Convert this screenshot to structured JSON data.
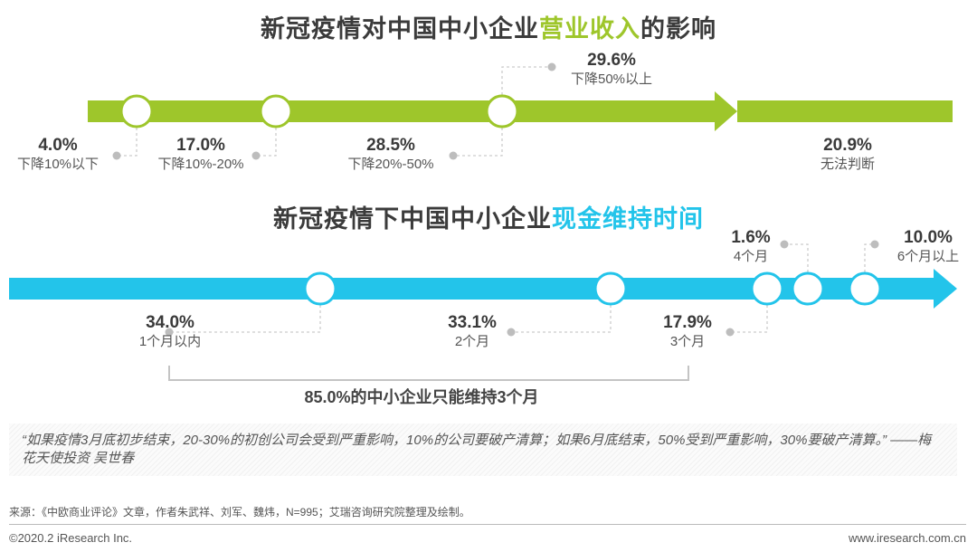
{
  "colors": {
    "green": "#9ec62b",
    "blue": "#23c4ea",
    "dashed": "#cccccc",
    "dot": "#bdbdbd"
  },
  "chart1": {
    "title_prefix": "新冠疫情对中国中小企业",
    "title_highlight": "营业收入",
    "title_suffix": "的影响"
  },
  "chart2": {
    "title_prefix": "新冠疫情下中国中小企业",
    "title_highlight": "现金维持时间",
    "summary": "85.0%的中小企业只能维持3个月"
  },
  "chart_data": [
    {
      "type": "timeline",
      "title": "新冠疫情对中国中小企业营业收入的影响",
      "unit": "%",
      "categories": [
        "下降10%以下",
        "下降10%-20%",
        "下降20%-50%",
        "下降50%以上",
        "无法判断"
      ],
      "values": [
        4.0,
        17.0,
        28.5,
        29.6,
        20.9
      ],
      "labels": [
        "4.0%",
        "17.0%",
        "28.5%",
        "29.6%",
        "20.9%"
      ]
    },
    {
      "type": "timeline",
      "title": "新冠疫情下中国中小企业现金维持时间",
      "unit": "%",
      "categories": [
        "1个月以内",
        "2个月",
        "3个月",
        "4个月",
        "6个月以上"
      ],
      "values": [
        34.0,
        33.1,
        17.9,
        1.6,
        10.0
      ],
      "labels": [
        "34.0%",
        "33.1%",
        "17.9%",
        "1.6%",
        "10.0%"
      ],
      "annotation": "85.0%的中小企业只能维持3个月"
    }
  ],
  "quote": "“如果疫情3月底初步结束，20-30%的初创公司会受到严重影响，10%的公司要破产清算；如果6月底结束，50%受到严重影响，30%要破产清算。” ——梅花天使投资 吴世春",
  "footer": {
    "source": "来源：《中欧商业评论》文章，作者朱武祥、刘军、魏炜，N=995；艾瑞咨询研究院整理及绘制。",
    "copyright": "©2020.2 iResearch Inc.",
    "website": "www.iresearch.com.cn"
  }
}
